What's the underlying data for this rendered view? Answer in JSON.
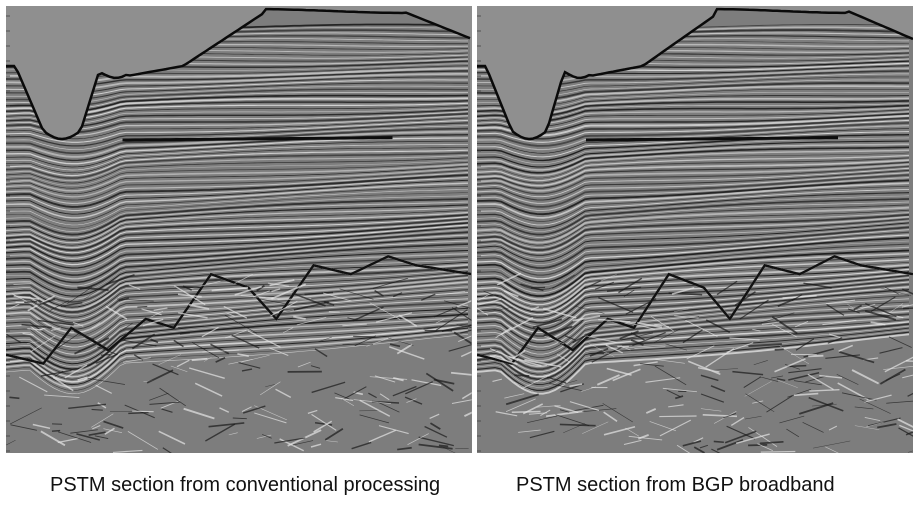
{
  "figure": {
    "left_panel": {
      "caption": "PSTM section from conventional processing"
    },
    "right_panel": {
      "caption": "PSTM section from BGP broadband"
    }
  },
  "colors": {
    "sky_gray": "#9a9a9a",
    "dark_reflector": "#111111",
    "light_reflector": "#f2f2f2",
    "background": "#ffffff"
  }
}
